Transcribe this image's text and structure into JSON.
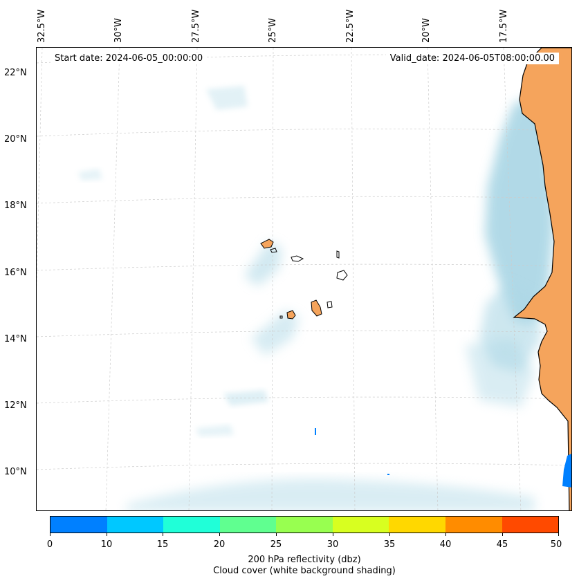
{
  "map": {
    "start_date_label": "Start date: 2024-06-05_00:00:00",
    "valid_date_label": "Valid_date: 2024-06-05T08:00:00.00",
    "lon_ticks": [
      "32.5°W",
      "30°W",
      "27.5°W",
      "25°W",
      "22.5°W",
      "20°W",
      "17.5°W"
    ],
    "lat_ticks": [
      "22°N",
      "20°N",
      "18°N",
      "16°N",
      "14°N",
      "12°N",
      "10°N"
    ],
    "colors": {
      "land": "#f5a45c",
      "cloud": "#add8e6",
      "coast": "#000000",
      "grid": "#cccccc",
      "reflectivity_spot": "#0080ff"
    }
  },
  "colorbar": {
    "tick_labels": [
      "0",
      "10",
      "15",
      "20",
      "25",
      "30",
      "35",
      "40",
      "45",
      "50"
    ],
    "colors": [
      "#0080ff",
      "#00c8ff",
      "#20ffd8",
      "#60ff90",
      "#98ff50",
      "#d8ff20",
      "#ffd800",
      "#ff8c00",
      "#ff4a00"
    ],
    "label_line1": "200 hPa reflectivity (dbz)",
    "label_line2": "Cloud cover (white background shading)"
  }
}
